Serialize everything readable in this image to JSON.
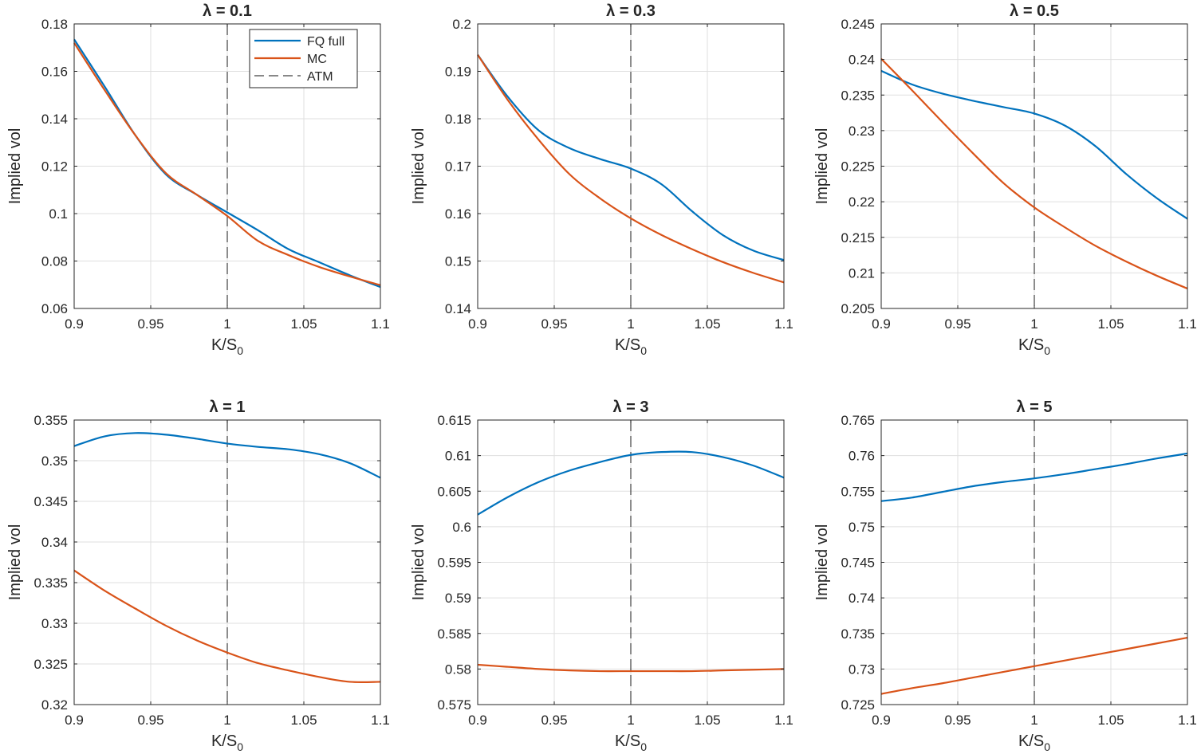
{
  "chart_data": [
    {
      "type": "line",
      "title": "λ = 0.1",
      "xlabel": "K/S",
      "xlabel_sub": "0",
      "ylabel": "Implied vol",
      "xlim": [
        0.9,
        1.1
      ],
      "ylim": [
        0.06,
        0.18
      ],
      "xticks": [
        0.9,
        0.95,
        1,
        1.05,
        1.1
      ],
      "xtick_labels": [
        "0.9",
        "0.95",
        "1",
        "1.05",
        "1.1"
      ],
      "yticks": [
        0.06,
        0.08,
        0.1,
        0.12,
        0.14,
        0.16,
        0.18
      ],
      "ytick_labels": [
        "0.06",
        "0.08",
        "0.1",
        "0.12",
        "0.14",
        "0.16",
        "0.18"
      ],
      "grid": true,
      "atm_line": 1.0,
      "x": [
        0.9,
        0.92,
        0.94,
        0.96,
        0.98,
        1.0,
        1.02,
        1.04,
        1.06,
        1.08,
        1.1
      ],
      "series": [
        {
          "name": "FQ full",
          "color": "#0072BD",
          "values": [
            0.1735,
            0.1535,
            0.133,
            0.1165,
            0.108,
            0.1005,
            0.093,
            0.085,
            0.0795,
            0.074,
            0.069
          ]
        },
        {
          "name": "MC",
          "color": "#D95319",
          "values": [
            0.172,
            0.152,
            0.133,
            0.117,
            0.108,
            0.099,
            0.0885,
            0.0825,
            0.0775,
            0.0735,
            0.0698
          ]
        }
      ],
      "legend": {
        "position": "top-right",
        "entries": [
          "FQ full",
          "MC",
          "ATM"
        ]
      }
    },
    {
      "type": "line",
      "title": "λ = 0.3",
      "xlabel": "K/S",
      "xlabel_sub": "0",
      "ylabel": "Implied vol",
      "xlim": [
        0.9,
        1.1
      ],
      "ylim": [
        0.14,
        0.2
      ],
      "xticks": [
        0.9,
        0.95,
        1,
        1.05,
        1.1
      ],
      "xtick_labels": [
        "0.9",
        "0.95",
        "1",
        "1.05",
        "1.1"
      ],
      "yticks": [
        0.14,
        0.15,
        0.16,
        0.17,
        0.18,
        0.19,
        0.2
      ],
      "ytick_labels": [
        "0.14",
        "0.15",
        "0.16",
        "0.17",
        "0.18",
        "0.19",
        "0.2"
      ],
      "grid": true,
      "atm_line": 1.0,
      "x": [
        0.9,
        0.92,
        0.94,
        0.96,
        0.98,
        1.0,
        1.02,
        1.04,
        1.06,
        1.08,
        1.1
      ],
      "series": [
        {
          "name": "FQ full",
          "color": "#0072BD",
          "values": [
            0.1935,
            0.1845,
            0.1775,
            0.1738,
            0.1715,
            0.1695,
            0.1662,
            0.1605,
            0.1555,
            0.1522,
            0.1502
          ]
        },
        {
          "name": "MC",
          "color": "#D95319",
          "values": [
            0.1935,
            0.1838,
            0.1755,
            0.1683,
            0.1632,
            0.159,
            0.1555,
            0.1525,
            0.1498,
            0.1475,
            0.1455
          ]
        }
      ]
    },
    {
      "type": "line",
      "title": "λ = 0.5",
      "xlabel": "K/S",
      "xlabel_sub": "0",
      "ylabel": "Implied vol",
      "xlim": [
        0.9,
        1.1
      ],
      "ylim": [
        0.205,
        0.245
      ],
      "xticks": [
        0.9,
        0.95,
        1,
        1.05,
        1.1
      ],
      "xtick_labels": [
        "0.9",
        "0.95",
        "1",
        "1.05",
        "1.1"
      ],
      "yticks": [
        0.205,
        0.21,
        0.215,
        0.22,
        0.225,
        0.23,
        0.235,
        0.24,
        0.245
      ],
      "ytick_labels": [
        "0.205",
        "0.21",
        "0.215",
        "0.22",
        "0.225",
        "0.23",
        "0.235",
        "0.24",
        "0.245"
      ],
      "grid": true,
      "atm_line": 1.0,
      "x": [
        0.9,
        0.92,
        0.94,
        0.96,
        0.98,
        1.0,
        1.02,
        1.04,
        1.06,
        1.08,
        1.1
      ],
      "series": [
        {
          "name": "FQ full",
          "color": "#0072BD",
          "values": [
            0.2384,
            0.2365,
            0.2352,
            0.2342,
            0.2333,
            0.2324,
            0.2307,
            0.2278,
            0.2239,
            0.2205,
            0.2176
          ]
        },
        {
          "name": "MC",
          "color": "#D95319",
          "values": [
            0.2401,
            0.2357,
            0.2312,
            0.2268,
            0.2226,
            0.2192,
            0.2164,
            0.2138,
            0.2116,
            0.2096,
            0.2078
          ]
        }
      ]
    },
    {
      "type": "line",
      "title": "λ = 1",
      "xlabel": "K/S",
      "xlabel_sub": "0",
      "ylabel": "Implied vol",
      "xlim": [
        0.9,
        1.1
      ],
      "ylim": [
        0.32,
        0.355
      ],
      "xticks": [
        0.9,
        0.95,
        1,
        1.05,
        1.1
      ],
      "xtick_labels": [
        "0.9",
        "0.95",
        "1",
        "1.05",
        "1.1"
      ],
      "yticks": [
        0.32,
        0.325,
        0.33,
        0.335,
        0.34,
        0.345,
        0.35,
        0.355
      ],
      "ytick_labels": [
        "0.32",
        "0.325",
        "0.33",
        "0.335",
        "0.34",
        "0.345",
        "0.35",
        "0.355"
      ],
      "grid": true,
      "atm_line": 1.0,
      "x": [
        0.9,
        0.92,
        0.94,
        0.96,
        0.98,
        1.0,
        1.02,
        1.04,
        1.06,
        1.08,
        1.1
      ],
      "series": [
        {
          "name": "FQ full",
          "color": "#0072BD",
          "values": [
            0.3518,
            0.353,
            0.3534,
            0.3532,
            0.3527,
            0.3521,
            0.3517,
            0.3514,
            0.3508,
            0.3497,
            0.3479
          ]
        },
        {
          "name": "MC",
          "color": "#D95319",
          "values": [
            0.3365,
            0.334,
            0.3318,
            0.3297,
            0.3279,
            0.3264,
            0.3251,
            0.3242,
            0.3234,
            0.3228,
            0.3228
          ]
        }
      ]
    },
    {
      "type": "line",
      "title": "λ = 3",
      "xlabel": "K/S",
      "xlabel_sub": "0",
      "ylabel": "Implied vol",
      "xlim": [
        0.9,
        1.1
      ],
      "ylim": [
        0.575,
        0.615
      ],
      "xticks": [
        0.9,
        0.95,
        1,
        1.05,
        1.1
      ],
      "xtick_labels": [
        "0.9",
        "0.95",
        "1",
        "1.05",
        "1.1"
      ],
      "yticks": [
        0.575,
        0.58,
        0.585,
        0.59,
        0.595,
        0.6,
        0.605,
        0.61,
        0.615
      ],
      "ytick_labels": [
        "0.575",
        "0.58",
        "0.585",
        "0.59",
        "0.595",
        "0.6",
        "0.605",
        "0.61",
        "0.615"
      ],
      "grid": true,
      "atm_line": 1.0,
      "x": [
        0.9,
        0.92,
        0.94,
        0.96,
        0.98,
        1.0,
        1.02,
        1.04,
        1.06,
        1.08,
        1.1
      ],
      "series": [
        {
          "name": "FQ full",
          "color": "#0072BD",
          "values": [
            0.6017,
            0.6042,
            0.6063,
            0.6079,
            0.6091,
            0.6101,
            0.6105,
            0.6105,
            0.6098,
            0.6086,
            0.6069
          ]
        },
        {
          "name": "MC",
          "color": "#D95319",
          "values": [
            0.5806,
            0.5803,
            0.58,
            0.5798,
            0.5797,
            0.5797,
            0.5797,
            0.5797,
            0.5798,
            0.5799,
            0.58
          ]
        }
      ]
    },
    {
      "type": "line",
      "title": "λ = 5",
      "xlabel": "K/S",
      "xlabel_sub": "0",
      "ylabel": "Implied vol",
      "xlim": [
        0.9,
        1.1
      ],
      "ylim": [
        0.725,
        0.765
      ],
      "xticks": [
        0.9,
        0.95,
        1,
        1.05,
        1.1
      ],
      "xtick_labels": [
        "0.9",
        "0.95",
        "1",
        "1.05",
        "1.1"
      ],
      "yticks": [
        0.725,
        0.73,
        0.735,
        0.74,
        0.745,
        0.75,
        0.755,
        0.76,
        0.765
      ],
      "ytick_labels": [
        "0.725",
        "0.73",
        "0.735",
        "0.74",
        "0.745",
        "0.75",
        "0.755",
        "0.76",
        "0.765"
      ],
      "grid": true,
      "atm_line": 1.0,
      "x": [
        0.9,
        0.92,
        0.94,
        0.96,
        0.98,
        1.0,
        1.02,
        1.04,
        1.06,
        1.08,
        1.1
      ],
      "series": [
        {
          "name": "FQ full",
          "color": "#0072BD",
          "values": [
            0.7536,
            0.7541,
            0.7549,
            0.7557,
            0.7563,
            0.7568,
            0.7574,
            0.7581,
            0.7588,
            0.7596,
            0.7603
          ]
        },
        {
          "name": "MC",
          "color": "#D95319",
          "values": [
            0.7265,
            0.7273,
            0.728,
            0.7288,
            0.7296,
            0.7304,
            0.7312,
            0.732,
            0.7328,
            0.7336,
            0.7344
          ]
        }
      ]
    }
  ]
}
